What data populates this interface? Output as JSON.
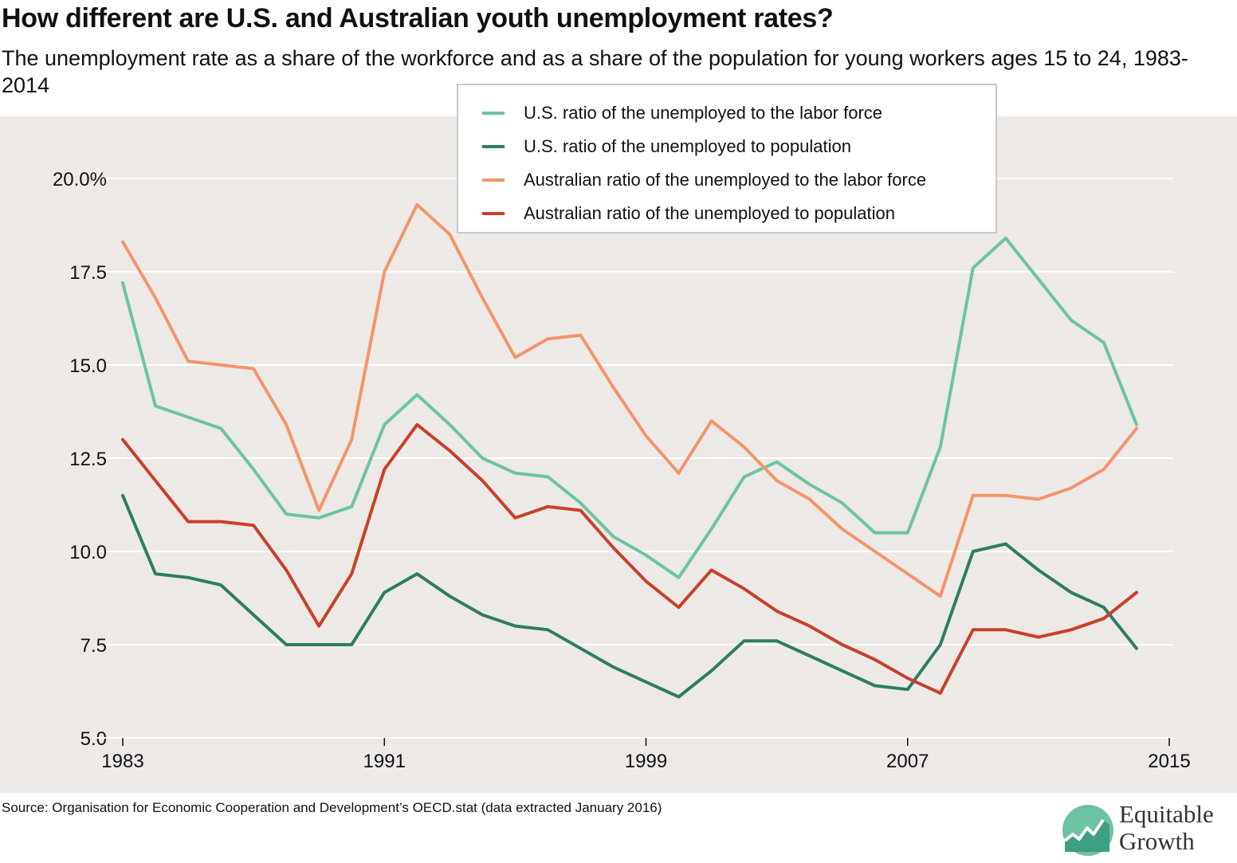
{
  "header": {
    "title": "How different are U.S. and Australian youth unemployment rates?",
    "subtitle": "The unemployment rate as a share of the workforce and as a share of the population for young workers ages 15 to 24, 1983-2014"
  },
  "footer": {
    "source": "Source: Organisation for Economic Cooperation and Development’s OECD.stat (data extracted January 2016)"
  },
  "logo": {
    "line1": "Equitable",
    "line2": "Growth",
    "color": "#3f9e83"
  },
  "colors": {
    "background": "#ede9e7",
    "grid": "#ffffff"
  },
  "chart_data": {
    "type": "line",
    "title": "How different are U.S. and Australian youth unemployment rates?",
    "xlim": [
      1983,
      2015
    ],
    "ylim": [
      5.0,
      20.0
    ],
    "x_ticks": [
      1983,
      1991,
      1999,
      2007,
      2015
    ],
    "x_tick_labels": [
      "1983",
      "1991",
      "1999",
      "2007",
      "2015"
    ],
    "y_ticks": [
      5.0,
      7.5,
      10.0,
      12.5,
      15.0,
      17.5,
      20.0
    ],
    "y_tick_labels": [
      "5.0",
      "7.5",
      "10.0",
      "12.5",
      "15.0",
      "17.5",
      "20.0%"
    ],
    "grid": "horizontal",
    "legend_position": "top-center",
    "x": [
      1983,
      1984,
      1985,
      1986,
      1987,
      1988,
      1989,
      1990,
      1991,
      1992,
      1993,
      1994,
      1995,
      1996,
      1997,
      1998,
      1999,
      2000,
      2001,
      2002,
      2003,
      2004,
      2005,
      2006,
      2007,
      2008,
      2009,
      2010,
      2011,
      2012,
      2013,
      2014
    ],
    "series": [
      {
        "name": "U.S. ratio of the unemployed to the labor force",
        "color": "#6cc4a2",
        "values": [
          17.2,
          13.9,
          13.6,
          13.3,
          12.2,
          11.0,
          10.9,
          11.2,
          13.4,
          14.2,
          13.4,
          12.5,
          12.1,
          12.0,
          11.3,
          10.4,
          9.9,
          9.3,
          10.6,
          12.0,
          12.4,
          11.8,
          11.3,
          10.5,
          10.5,
          12.8,
          17.6,
          18.4,
          17.3,
          16.2,
          15.6,
          13.4
        ]
      },
      {
        "name": "U.S. ratio of the unemployed to population",
        "color": "#2e7d62",
        "values": [
          11.5,
          9.4,
          9.3,
          9.1,
          8.3,
          7.5,
          7.5,
          7.5,
          8.9,
          9.4,
          8.8,
          8.3,
          8.0,
          7.9,
          7.4,
          6.9,
          6.5,
          6.1,
          6.8,
          7.6,
          7.6,
          7.2,
          6.8,
          6.4,
          6.3,
          7.5,
          10.0,
          10.2,
          9.5,
          8.9,
          8.5,
          7.4
        ]
      },
      {
        "name": "Australian ratio of the unemployed to the labor force",
        "color": "#f4946b",
        "values": [
          18.3,
          16.8,
          15.1,
          15.0,
          14.9,
          13.4,
          11.1,
          13.0,
          17.5,
          19.3,
          18.5,
          16.8,
          15.2,
          15.7,
          15.8,
          14.4,
          13.1,
          12.1,
          13.5,
          12.8,
          11.9,
          11.4,
          10.6,
          10.0,
          9.4,
          8.8,
          11.5,
          11.5,
          11.4,
          11.7,
          12.2,
          13.3
        ]
      },
      {
        "name": "Australian ratio of the unemployed to population",
        "color": "#c8412a",
        "values": [
          13.0,
          11.9,
          10.8,
          10.8,
          10.7,
          9.5,
          8.0,
          9.4,
          12.2,
          13.4,
          12.7,
          11.9,
          10.9,
          11.2,
          11.1,
          10.1,
          9.2,
          8.5,
          9.5,
          9.0,
          8.4,
          8.0,
          7.5,
          7.1,
          6.6,
          6.2,
          7.9,
          7.9,
          7.7,
          7.9,
          8.2,
          8.9
        ]
      }
    ]
  }
}
